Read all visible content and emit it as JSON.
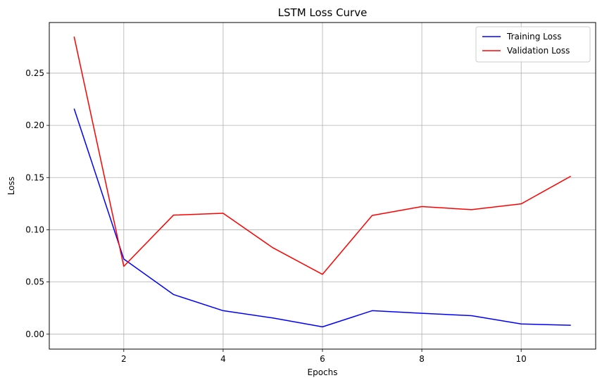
{
  "chart_data": {
    "type": "line",
    "title": "LSTM Loss Curve",
    "xlabel": "Epochs",
    "ylabel": "Loss",
    "x": [
      1,
      2,
      3,
      4,
      5,
      6,
      7,
      8,
      9,
      10,
      11
    ],
    "xlim": [
      0.5,
      11.5
    ],
    "ylim": [
      -0.0143,
      0.2985
    ],
    "xticks": [
      2,
      4,
      6,
      8,
      10
    ],
    "xtick_labels": [
      "2",
      "4",
      "6",
      "8",
      "10"
    ],
    "yticks": [
      0.0,
      0.05,
      0.1,
      0.15,
      0.2,
      0.25
    ],
    "ytick_labels": [
      "0.00",
      "0.05",
      "0.10",
      "0.15",
      "0.20",
      "0.25"
    ],
    "grid": true,
    "legend_position": "top-right",
    "series": [
      {
        "name": "Training Loss",
        "color": "#0000ff",
        "values": [
          0.216,
          0.072,
          0.038,
          0.0225,
          0.0155,
          0.007,
          0.0225,
          0.02,
          0.0177,
          0.0098,
          0.0085
        ]
      },
      {
        "name": "Validation Loss",
        "color": "#ff0000",
        "values": [
          0.285,
          0.065,
          0.114,
          0.1158,
          0.0828,
          0.0573,
          0.1137,
          0.1222,
          0.1193,
          0.1248,
          0.1513
        ]
      }
    ]
  }
}
